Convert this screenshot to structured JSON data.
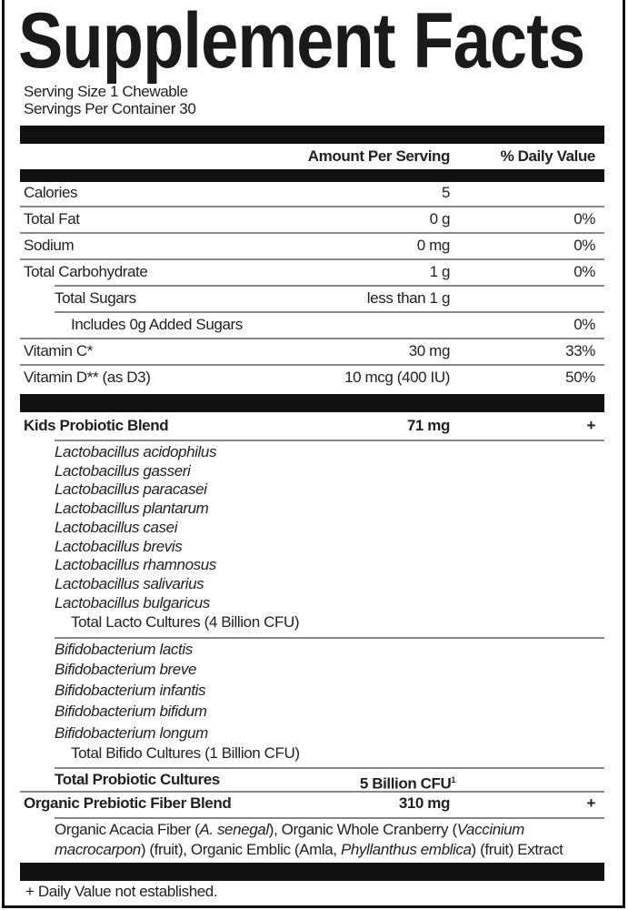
{
  "title": "Supplement Facts",
  "serving_size": "Serving Size 1 Chewable",
  "servings_per_container": "Servings Per Container 30",
  "header": {
    "amount": "Amount Per Serving",
    "dv": "% Daily Value"
  },
  "nutrients": [
    {
      "name": "Calories",
      "amount": "5",
      "dv": "",
      "indent": 0
    },
    {
      "name": "Total Fat",
      "amount": "0 g",
      "dv": "0%",
      "indent": 0
    },
    {
      "name": "Sodium",
      "amount": "0 mg",
      "dv": "0%",
      "indent": 0
    },
    {
      "name": "Total Carbohydrate",
      "amount": "1 g",
      "dv": "0%",
      "indent": 0
    },
    {
      "name": "Total Sugars",
      "amount": "less than 1 g",
      "dv": "",
      "indent": 1
    },
    {
      "name": "Includes 0g Added Sugars",
      "amount": "",
      "dv": "0%",
      "indent": 2
    },
    {
      "name": "Vitamin C*",
      "amount": "30 mg",
      "dv": "33%",
      "indent": 0
    },
    {
      "name": "Vitamin D** (as D3)",
      "amount": "10 mcg (400 IU)",
      "dv": "50%",
      "indent": 0
    }
  ],
  "probiotic_blend": {
    "name": "Kids Probiotic Blend",
    "amount": "71 mg",
    "dv": "+"
  },
  "lacto_strains": [
    "Lactobacillus acidophilus",
    "Lactobacillus gasseri",
    "Lactobacillus paracasei",
    "Lactobacillus plantarum",
    "Lactobacillus casei",
    "Lactobacillus brevis",
    "Lactobacillus rhamnosus",
    "Lactobacillus salivarius",
    "Lactobacillus bulgaricus"
  ],
  "lacto_total": "Total Lacto Cultures   (4 Billion CFU)",
  "bifido_strains": [
    "Bifidobacterium lactis",
    "Bifidobacterium breve",
    "Bifidobacterium infantis",
    "Bifidobacterium bifidum",
    "Bifidobacterium longum"
  ],
  "bifido_total": "Total Bifido Cultures   (1 Billion CFU)",
  "total_probiotic": {
    "name": "Total Probiotic Cultures",
    "amount": "5 Billion CFU",
    "sup": "1"
  },
  "prebiotic_blend": {
    "name": "Organic Prebiotic Fiber Blend",
    "amount": "310 mg",
    "dv": "+"
  },
  "prebiotic_desc": [
    [
      {
        "t": "Organic Acacia Fiber (",
        "i": false
      },
      {
        "t": "A. senegal",
        "i": true
      },
      {
        "t": "), Organic Whole Cranberry (",
        "i": false
      },
      {
        "t": "Vaccinium",
        "i": true
      }
    ],
    [
      {
        "t": "macrocarpon",
        "i": true
      },
      {
        "t": ") (fruit), Organic Emblic (Amla, ",
        "i": false
      },
      {
        "t": "Phyllanthus emblica",
        "i": true
      },
      {
        "t": ") (fruit) Extract",
        "i": false
      }
    ]
  ],
  "footnote": "+ Daily Value not established."
}
